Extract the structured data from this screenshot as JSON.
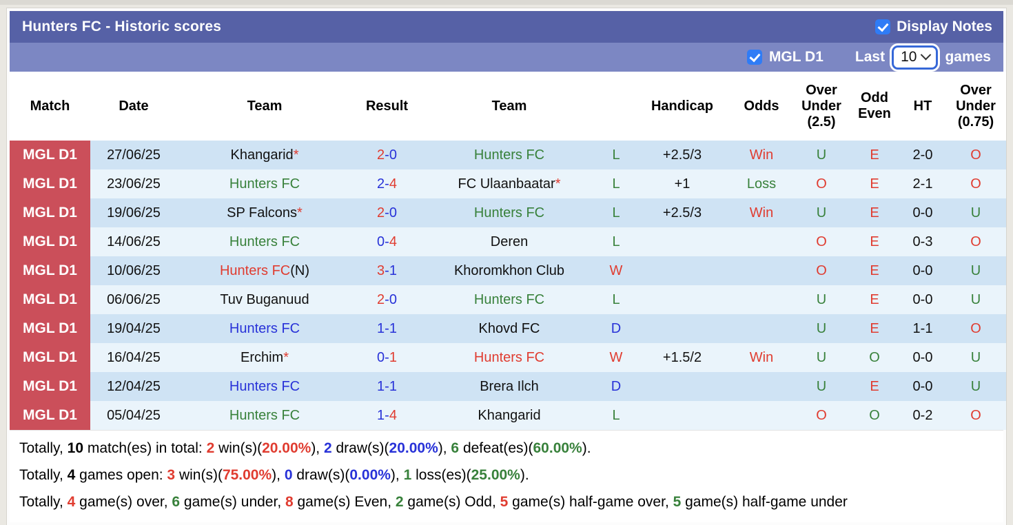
{
  "colors": {
    "red": "#e03c30",
    "blue": "#2832d8",
    "green": "#38813b",
    "black": "#111111"
  },
  "header": {
    "title": "Hunters FC - Historic scores",
    "display_notes_label": "Display Notes",
    "display_notes_checked": true
  },
  "filter_bar": {
    "league_label": "MGL D1",
    "league_checked": true,
    "last_label": "Last",
    "games_count": "10",
    "games_label": "games"
  },
  "table": {
    "columns": [
      "Match",
      "Date",
      "Team",
      "Result",
      "Team",
      "",
      "Handicap",
      "Odds",
      "Over\nUnder\n(2.5)",
      "Odd\nEven",
      "HT",
      "Over\nUnder\n(0.75)"
    ]
  },
  "rows": [
    {
      "league": "MGL D1",
      "date": "27/06/25",
      "home": {
        "name": "Khangarid",
        "star": true,
        "suffix": "",
        "color": "black"
      },
      "result": {
        "home": "2",
        "home_color": "red",
        "away": "0",
        "away_color": "blue"
      },
      "away": {
        "name": "Hunters FC",
        "star": false,
        "suffix": "",
        "color": "green"
      },
      "wld": {
        "text": "L",
        "color": "green"
      },
      "handicap": "+2.5/3",
      "odds": {
        "text": "Win",
        "color": "red"
      },
      "ou25": {
        "text": "U",
        "color": "green"
      },
      "odd_even": {
        "text": "E",
        "color": "red"
      },
      "ht": "2-0",
      "ou075": {
        "text": "O",
        "color": "red"
      }
    },
    {
      "league": "MGL D1",
      "date": "23/06/25",
      "home": {
        "name": "Hunters FC",
        "star": false,
        "suffix": "",
        "color": "green"
      },
      "result": {
        "home": "2",
        "home_color": "blue",
        "away": "4",
        "away_color": "red"
      },
      "away": {
        "name": "FC Ulaanbaatar",
        "star": true,
        "suffix": "",
        "color": "black"
      },
      "wld": {
        "text": "L",
        "color": "green"
      },
      "handicap": "+1",
      "odds": {
        "text": "Loss",
        "color": "green"
      },
      "ou25": {
        "text": "O",
        "color": "red"
      },
      "odd_even": {
        "text": "E",
        "color": "red"
      },
      "ht": "2-1",
      "ou075": {
        "text": "O",
        "color": "red"
      }
    },
    {
      "league": "MGL D1",
      "date": "19/06/25",
      "home": {
        "name": "SP Falcons",
        "star": true,
        "suffix": "",
        "color": "black"
      },
      "result": {
        "home": "2",
        "home_color": "red",
        "away": "0",
        "away_color": "blue"
      },
      "away": {
        "name": "Hunters FC",
        "star": false,
        "suffix": "",
        "color": "green"
      },
      "wld": {
        "text": "L",
        "color": "green"
      },
      "handicap": "+2.5/3",
      "odds": {
        "text": "Win",
        "color": "red"
      },
      "ou25": {
        "text": "U",
        "color": "green"
      },
      "odd_even": {
        "text": "E",
        "color": "red"
      },
      "ht": "0-0",
      "ou075": {
        "text": "U",
        "color": "green"
      }
    },
    {
      "league": "MGL D1",
      "date": "14/06/25",
      "home": {
        "name": "Hunters FC",
        "star": false,
        "suffix": "",
        "color": "green"
      },
      "result": {
        "home": "0",
        "home_color": "blue",
        "away": "4",
        "away_color": "red"
      },
      "away": {
        "name": "Deren",
        "star": false,
        "suffix": "",
        "color": "black"
      },
      "wld": {
        "text": "L",
        "color": "green"
      },
      "handicap": "",
      "odds": {
        "text": "",
        "color": "black"
      },
      "ou25": {
        "text": "O",
        "color": "red"
      },
      "odd_even": {
        "text": "E",
        "color": "red"
      },
      "ht": "0-3",
      "ou075": {
        "text": "O",
        "color": "red"
      }
    },
    {
      "league": "MGL D1",
      "date": "10/06/25",
      "home": {
        "name": "Hunters FC",
        "star": false,
        "suffix": "(N)",
        "color": "red"
      },
      "result": {
        "home": "3",
        "home_color": "red",
        "away": "1",
        "away_color": "blue"
      },
      "away": {
        "name": "Khoromkhon Club",
        "star": false,
        "suffix": "",
        "color": "black"
      },
      "wld": {
        "text": "W",
        "color": "red"
      },
      "handicap": "",
      "odds": {
        "text": "",
        "color": "black"
      },
      "ou25": {
        "text": "O",
        "color": "red"
      },
      "odd_even": {
        "text": "E",
        "color": "red"
      },
      "ht": "0-0",
      "ou075": {
        "text": "U",
        "color": "green"
      }
    },
    {
      "league": "MGL D1",
      "date": "06/06/25",
      "home": {
        "name": "Tuv Buganuud",
        "star": false,
        "suffix": "",
        "color": "black"
      },
      "result": {
        "home": "2",
        "home_color": "red",
        "away": "0",
        "away_color": "blue"
      },
      "away": {
        "name": "Hunters FC",
        "star": false,
        "suffix": "",
        "color": "green"
      },
      "wld": {
        "text": "L",
        "color": "green"
      },
      "handicap": "",
      "odds": {
        "text": "",
        "color": "black"
      },
      "ou25": {
        "text": "U",
        "color": "green"
      },
      "odd_even": {
        "text": "E",
        "color": "red"
      },
      "ht": "0-0",
      "ou075": {
        "text": "U",
        "color": "green"
      }
    },
    {
      "league": "MGL D1",
      "date": "19/04/25",
      "home": {
        "name": "Hunters FC",
        "star": false,
        "suffix": "",
        "color": "blue"
      },
      "result": {
        "home": "1",
        "home_color": "blue",
        "away": "1",
        "away_color": "blue"
      },
      "away": {
        "name": "Khovd FC",
        "star": false,
        "suffix": "",
        "color": "black"
      },
      "wld": {
        "text": "D",
        "color": "blue"
      },
      "handicap": "",
      "odds": {
        "text": "",
        "color": "black"
      },
      "ou25": {
        "text": "U",
        "color": "green"
      },
      "odd_even": {
        "text": "E",
        "color": "red"
      },
      "ht": "1-1",
      "ou075": {
        "text": "O",
        "color": "red"
      }
    },
    {
      "league": "MGL D1",
      "date": "16/04/25",
      "home": {
        "name": "Erchim",
        "star": true,
        "suffix": "",
        "color": "black"
      },
      "result": {
        "home": "0",
        "home_color": "blue",
        "away": "1",
        "away_color": "red"
      },
      "away": {
        "name": "Hunters FC",
        "star": false,
        "suffix": "",
        "color": "red"
      },
      "wld": {
        "text": "W",
        "color": "red"
      },
      "handicap": "+1.5/2",
      "odds": {
        "text": "Win",
        "color": "red"
      },
      "ou25": {
        "text": "U",
        "color": "green"
      },
      "odd_even": {
        "text": "O",
        "color": "green"
      },
      "ht": "0-0",
      "ou075": {
        "text": "U",
        "color": "green"
      }
    },
    {
      "league": "MGL D1",
      "date": "12/04/25",
      "home": {
        "name": "Hunters FC",
        "star": false,
        "suffix": "",
        "color": "blue"
      },
      "result": {
        "home": "1",
        "home_color": "blue",
        "away": "1",
        "away_color": "blue"
      },
      "away": {
        "name": "Brera Ilch",
        "star": false,
        "suffix": "",
        "color": "black"
      },
      "wld": {
        "text": "D",
        "color": "blue"
      },
      "handicap": "",
      "odds": {
        "text": "",
        "color": "black"
      },
      "ou25": {
        "text": "U",
        "color": "green"
      },
      "odd_even": {
        "text": "E",
        "color": "red"
      },
      "ht": "0-0",
      "ou075": {
        "text": "U",
        "color": "green"
      }
    },
    {
      "league": "MGL D1",
      "date": "05/04/25",
      "home": {
        "name": "Hunters FC",
        "star": false,
        "suffix": "",
        "color": "green"
      },
      "result": {
        "home": "1",
        "home_color": "blue",
        "away": "4",
        "away_color": "red"
      },
      "away": {
        "name": "Khangarid",
        "star": false,
        "suffix": "",
        "color": "black"
      },
      "wld": {
        "text": "L",
        "color": "green"
      },
      "handicap": "",
      "odds": {
        "text": "",
        "color": "black"
      },
      "ou25": {
        "text": "O",
        "color": "red"
      },
      "odd_even": {
        "text": "O",
        "color": "green"
      },
      "ht": "0-2",
      "ou075": {
        "text": "O",
        "color": "red"
      }
    }
  ],
  "summary": {
    "lines": [
      [
        {
          "t": "Totally, "
        },
        {
          "t": "10",
          "b": true
        },
        {
          "t": " match(es) in total: "
        },
        {
          "t": "2",
          "b": true,
          "c": "red"
        },
        {
          "t": " win(s)("
        },
        {
          "t": "20.00%",
          "b": true,
          "c": "red"
        },
        {
          "t": "), "
        },
        {
          "t": "2",
          "b": true,
          "c": "blue"
        },
        {
          "t": " draw(s)("
        },
        {
          "t": "20.00%",
          "b": true,
          "c": "blue"
        },
        {
          "t": "), "
        },
        {
          "t": "6",
          "b": true,
          "c": "green"
        },
        {
          "t": " defeat(es)("
        },
        {
          "t": "60.00%",
          "b": true,
          "c": "green"
        },
        {
          "t": ")."
        }
      ],
      [
        {
          "t": "Totally, "
        },
        {
          "t": "4",
          "b": true
        },
        {
          "t": " games open: "
        },
        {
          "t": "3",
          "b": true,
          "c": "red"
        },
        {
          "t": " win(s)("
        },
        {
          "t": "75.00%",
          "b": true,
          "c": "red"
        },
        {
          "t": "), "
        },
        {
          "t": "0",
          "b": true,
          "c": "blue"
        },
        {
          "t": " draw(s)("
        },
        {
          "t": "0.00%",
          "b": true,
          "c": "blue"
        },
        {
          "t": "), "
        },
        {
          "t": "1",
          "b": true,
          "c": "green"
        },
        {
          "t": " loss(es)("
        },
        {
          "t": "25.00%",
          "b": true,
          "c": "green"
        },
        {
          "t": ")."
        }
      ],
      [
        {
          "t": "Totally, "
        },
        {
          "t": "4",
          "b": true,
          "c": "red"
        },
        {
          "t": " game(s) over, "
        },
        {
          "t": "6",
          "b": true,
          "c": "green"
        },
        {
          "t": " game(s) under, "
        },
        {
          "t": "8",
          "b": true,
          "c": "red"
        },
        {
          "t": " game(s) Even, "
        },
        {
          "t": "2",
          "b": true,
          "c": "green"
        },
        {
          "t": " game(s) Odd, "
        },
        {
          "t": "5",
          "b": true,
          "c": "red"
        },
        {
          "t": " game(s) half-game over, "
        },
        {
          "t": "5",
          "b": true,
          "c": "green"
        },
        {
          "t": " game(s) half-game under"
        }
      ]
    ]
  }
}
